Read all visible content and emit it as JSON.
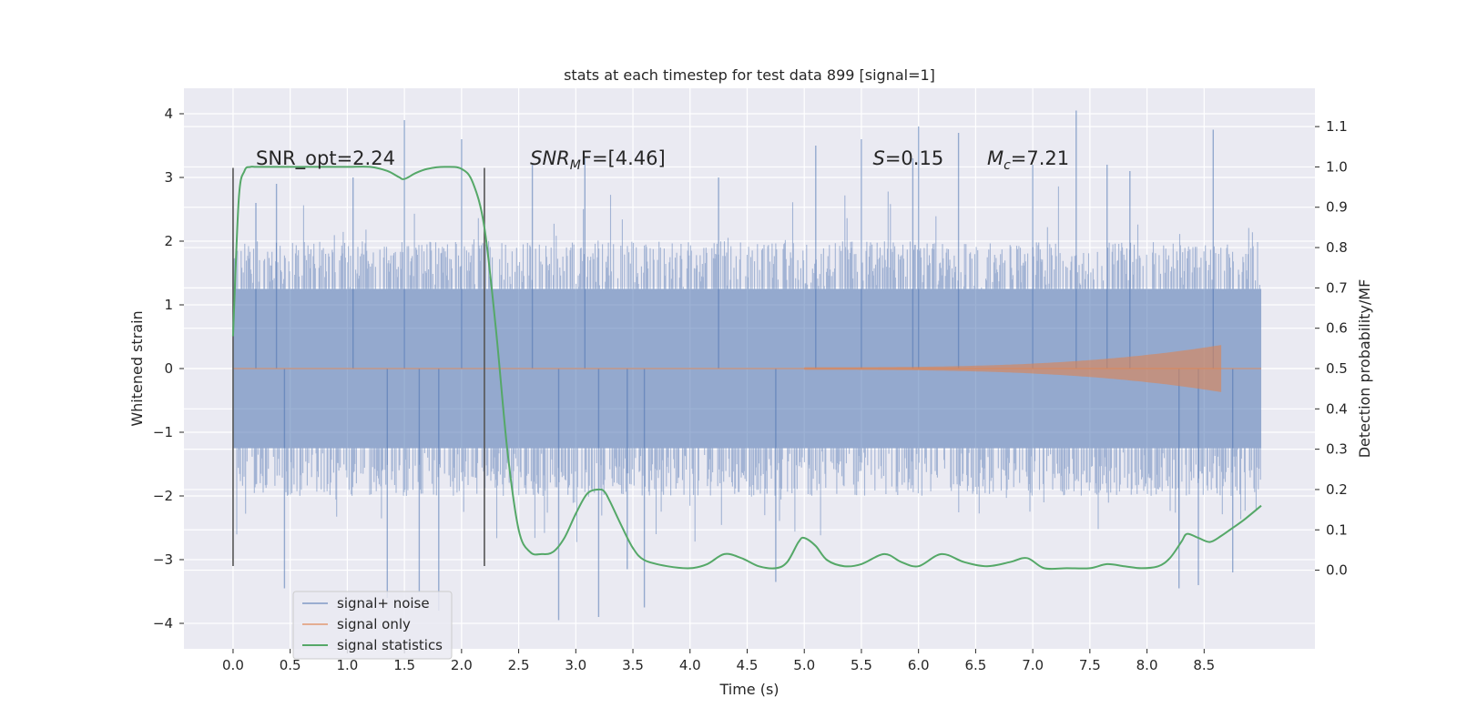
{
  "chart_data": {
    "type": "line",
    "title": "stats at each timestep for test data 899 [signal=1]",
    "xlabel": "Time (s)",
    "ylabel": "Whitened strain",
    "y2label": "Detection probability/MF",
    "xlim": [
      -0.43,
      9.47
    ],
    "ylim": [
      -4.4,
      4.4
    ],
    "y2lim": [
      -0.195,
      1.195
    ],
    "xticks": [
      0.0,
      0.5,
      1.0,
      1.5,
      2.0,
      2.5,
      3.0,
      3.5,
      4.0,
      4.5,
      5.0,
      5.5,
      6.0,
      6.5,
      7.0,
      7.5,
      8.0,
      8.5
    ],
    "xtick_labels": [
      "0.0",
      "0.5",
      "1.0",
      "1.5",
      "2.0",
      "2.5",
      "3.0",
      "3.5",
      "4.0",
      "4.5",
      "5.0",
      "5.5",
      "6.0",
      "6.5",
      "7.0",
      "7.5",
      "8.0",
      "8.5"
    ],
    "yticks": [
      -4,
      -3,
      -2,
      -1,
      0,
      1,
      2,
      3,
      4
    ],
    "ytick_labels": [
      "−4",
      "−3",
      "−2",
      "−1",
      "0",
      "1",
      "2",
      "3",
      "4"
    ],
    "y2ticks": [
      0.0,
      0.1,
      0.2,
      0.3,
      0.4,
      0.5,
      0.6,
      0.7,
      0.8,
      0.9,
      1.0,
      1.1
    ],
    "y2tick_labels": [
      "0.0",
      "0.1",
      "0.2",
      "0.3",
      "0.4",
      "0.5",
      "0.6",
      "0.7",
      "0.8",
      "0.9",
      "1.0",
      "1.1"
    ],
    "grid": true,
    "legend_position": "lower-left",
    "legend": [
      "signal+ noise",
      "signal only",
      "signal statistics"
    ],
    "colors": {
      "noise": "#4c72b0",
      "signal": "#dd8452",
      "stats": "#55a868",
      "background": "#eaeaf2",
      "grid": "#ffffff",
      "vline": "#555555"
    },
    "noise": {
      "t_start": 0.0,
      "t_end": 9.0,
      "core_amplitude": 1.25,
      "typical_peak": 2.0,
      "spikes": [
        {
          "t": 0.2,
          "v": 2.6
        },
        {
          "t": 0.38,
          "v": 2.9
        },
        {
          "t": 0.45,
          "v": -3.45
        },
        {
          "t": 1.05,
          "v": 3.0
        },
        {
          "t": 1.35,
          "v": -3.6
        },
        {
          "t": 1.5,
          "v": 3.9
        },
        {
          "t": 1.63,
          "v": -3.5
        },
        {
          "t": 1.8,
          "v": -3.8
        },
        {
          "t": 2.0,
          "v": 3.6
        },
        {
          "t": 2.62,
          "v": 3.2
        },
        {
          "t": 2.85,
          "v": -3.95
        },
        {
          "t": 3.08,
          "v": 3.3
        },
        {
          "t": 3.2,
          "v": -3.9
        },
        {
          "t": 3.45,
          "v": -3.15
        },
        {
          "t": 3.6,
          "v": -3.75
        },
        {
          "t": 4.25,
          "v": 3.0
        },
        {
          "t": 4.75,
          "v": -3.35
        },
        {
          "t": 5.1,
          "v": 3.5
        },
        {
          "t": 5.5,
          "v": 3.6
        },
        {
          "t": 5.95,
          "v": 3.3
        },
        {
          "t": 6.0,
          "v": 3.8
        },
        {
          "t": 6.35,
          "v": 3.7
        },
        {
          "t": 7.0,
          "v": 3.2
        },
        {
          "t": 7.38,
          "v": 4.05
        },
        {
          "t": 7.65,
          "v": 3.2
        },
        {
          "t": 7.85,
          "v": 3.1
        },
        {
          "t": 8.28,
          "v": -3.45
        },
        {
          "t": 8.45,
          "v": -3.4
        },
        {
          "t": 8.58,
          "v": 3.75
        },
        {
          "t": 8.75,
          "v": -3.2
        }
      ]
    },
    "signal_only": {
      "onset": 5.0,
      "end": 8.65,
      "final_amplitude": 0.35
    },
    "signal_statistics": {
      "t": [
        0.0,
        0.05,
        0.1,
        0.15,
        0.2,
        0.3,
        0.5,
        0.8,
        1.0,
        1.2,
        1.35,
        1.45,
        1.5,
        1.6,
        1.7,
        1.85,
        2.0,
        2.1,
        2.2,
        2.3,
        2.4,
        2.5,
        2.6,
        2.7,
        2.8,
        2.9,
        3.0,
        3.1,
        3.2,
        3.25,
        3.3,
        3.4,
        3.5,
        3.6,
        3.8,
        4.0,
        4.15,
        4.3,
        4.45,
        4.6,
        4.75,
        4.85,
        4.95,
        5.0,
        5.1,
        5.2,
        5.35,
        5.5,
        5.7,
        5.85,
        6.0,
        6.2,
        6.4,
        6.6,
        6.8,
        6.95,
        7.1,
        7.3,
        7.5,
        7.65,
        7.8,
        7.95,
        8.1,
        8.2,
        8.3,
        8.35,
        8.45,
        8.55,
        8.65,
        8.75,
        8.85,
        9.0
      ],
      "p": [
        0.58,
        0.92,
        0.99,
        1.0,
        1.0,
        1.0,
        1.0,
        1.0,
        1.0,
        1.0,
        0.99,
        0.975,
        0.97,
        0.985,
        0.995,
        1.0,
        0.995,
        0.96,
        0.85,
        0.6,
        0.3,
        0.1,
        0.045,
        0.04,
        0.045,
        0.08,
        0.14,
        0.19,
        0.2,
        0.195,
        0.17,
        0.11,
        0.055,
        0.025,
        0.01,
        0.005,
        0.015,
        0.04,
        0.03,
        0.01,
        0.005,
        0.02,
        0.07,
        0.08,
        0.06,
        0.025,
        0.01,
        0.015,
        0.04,
        0.02,
        0.01,
        0.04,
        0.02,
        0.01,
        0.02,
        0.03,
        0.005,
        0.005,
        0.005,
        0.015,
        0.01,
        0.005,
        0.01,
        0.03,
        0.07,
        0.09,
        0.08,
        0.07,
        0.085,
        0.105,
        0.125,
        0.16
      ]
    },
    "vlines": [
      {
        "t": 0.0,
        "y_low": -3.1,
        "y_high": 3.15
      },
      {
        "t": 2.2,
        "y_low": -3.1,
        "y_high": 3.15
      }
    ],
    "annotations": [
      {
        "t": 0.2,
        "y": 3.2,
        "text": "SNR_opt=2.24",
        "kind": "plain"
      },
      {
        "t": 2.6,
        "y": 3.2,
        "base": "SNR",
        "sub": "M",
        "tail": "F=[4.46]",
        "kind": "math"
      },
      {
        "t": 5.6,
        "y": 3.2,
        "base": "S",
        "sub": "",
        "tail": "=0.15",
        "kind": "math"
      },
      {
        "t": 6.6,
        "y": 3.2,
        "base": "M",
        "sub": "c",
        "tail": "=7.21",
        "kind": "math"
      }
    ]
  }
}
